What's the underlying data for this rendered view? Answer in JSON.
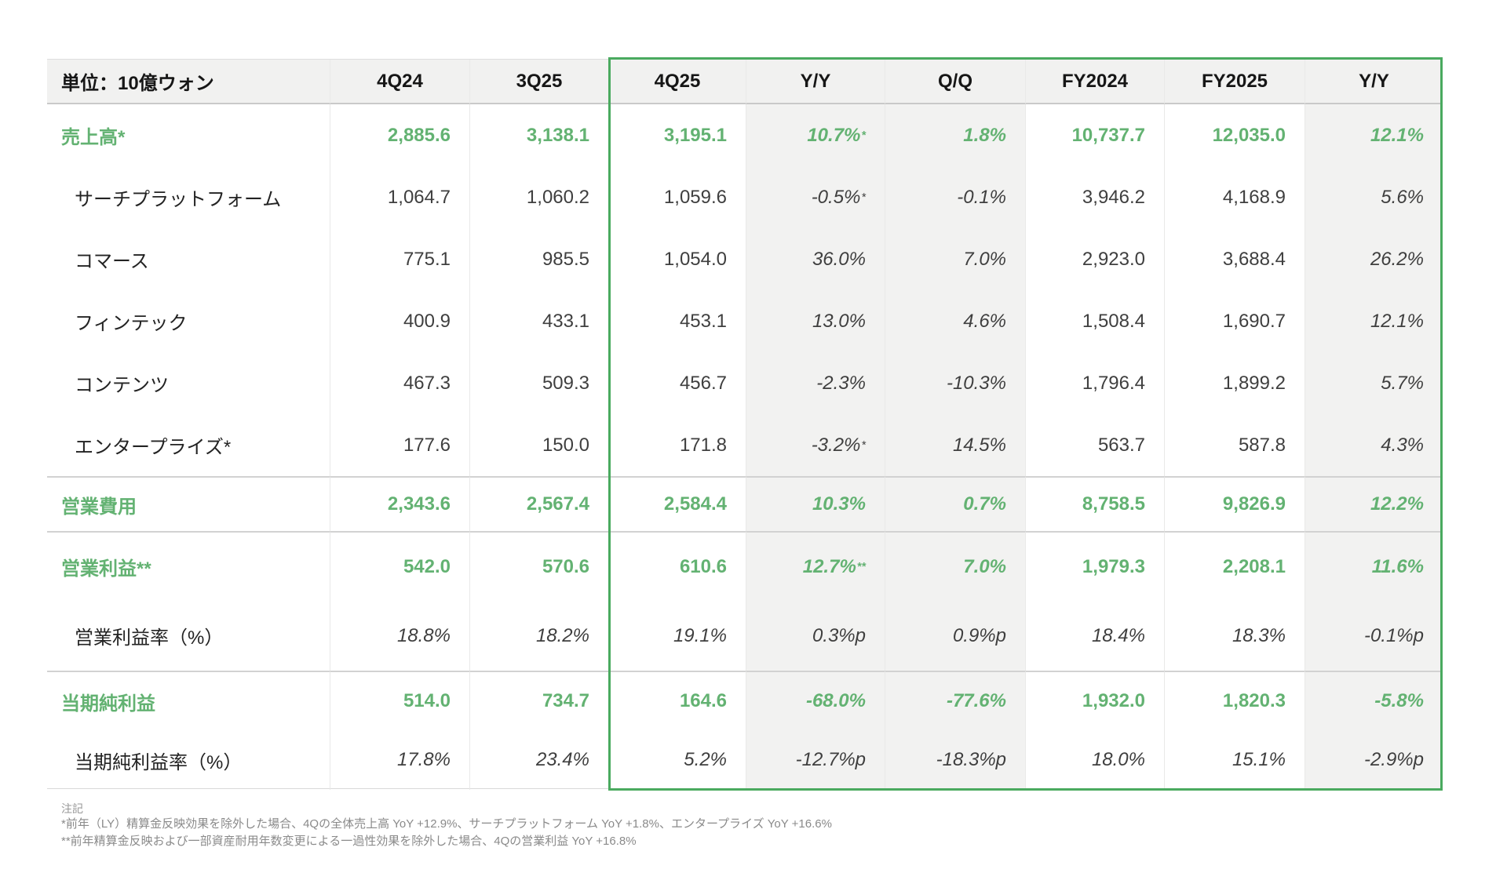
{
  "colors": {
    "green_text": "#63b272",
    "green_border": "#4aaa5f",
    "shade_bg": "#f2f2f1",
    "header_bg": "#f1f1f0"
  },
  "table": {
    "unit_label": "単位：10億ウォン",
    "columns": [
      "4Q24",
      "3Q25",
      "4Q25",
      "Y/Y",
      "Q/Q",
      "FY2024",
      "FY2025",
      "Y/Y"
    ],
    "highlighted_columns": [
      "4Q25",
      "Y/Y",
      "Q/Q",
      "FY2024",
      "FY2025",
      "Y/Y"
    ],
    "sections": [
      {
        "rows": [
          {
            "label": "売上高*",
            "style": "total",
            "values": [
              "2,885.6",
              "3,138.1",
              "3,195.1",
              "10.7%*",
              "1.8%",
              "10,737.7",
              "12,035.0",
              "12.1%"
            ]
          },
          {
            "label": "サーチプラットフォーム",
            "style": "sub",
            "values": [
              "1,064.7",
              "1,060.2",
              "1,059.6",
              "-0.5%*",
              "-0.1%",
              "3,946.2",
              "4,168.9",
              "5.6%"
            ]
          },
          {
            "label": "コマース",
            "style": "sub",
            "values": [
              "775.1",
              "985.5",
              "1,054.0",
              "36.0%",
              "7.0%",
              "2,923.0",
              "3,688.4",
              "26.2%"
            ]
          },
          {
            "label": "フィンテック",
            "style": "sub",
            "values": [
              "400.9",
              "433.1",
              "453.1",
              "13.0%",
              "4.6%",
              "1,508.4",
              "1,690.7",
              "12.1%"
            ]
          },
          {
            "label": "コンテンツ",
            "style": "sub",
            "values": [
              "467.3",
              "509.3",
              "456.7",
              "-2.3%",
              "-10.3%",
              "1,796.4",
              "1,899.2",
              "5.7%"
            ]
          },
          {
            "label": "エンタープライズ*",
            "style": "sub",
            "values": [
              "177.6",
              "150.0",
              "171.8",
              "-3.2%*",
              "14.5%",
              "563.7",
              "587.8",
              "4.3%"
            ]
          }
        ]
      },
      {
        "rows": [
          {
            "label": "営業費用",
            "style": "total",
            "values": [
              "2,343.6",
              "2,567.4",
              "2,584.4",
              "10.3%",
              "0.7%",
              "8,758.5",
              "9,826.9",
              "12.2%"
            ]
          }
        ]
      },
      {
        "rows": [
          {
            "label": "営業利益**",
            "style": "total",
            "values": [
              "542.0",
              "570.6",
              "610.6",
              "12.7%**",
              "7.0%",
              "1,979.3",
              "2,208.1",
              "11.6%"
            ]
          },
          {
            "label": "営業利益率（%）",
            "style": "ratio",
            "values": [
              "18.8%",
              "18.2%",
              "19.1%",
              "0.3%p",
              "0.9%p",
              "18.4%",
              "18.3%",
              "-0.1%p"
            ]
          }
        ]
      },
      {
        "rows": [
          {
            "label": "当期純利益",
            "style": "total",
            "values": [
              "514.0",
              "734.7",
              "164.6",
              "-68.0%",
              "-77.6%",
              "1,932.0",
              "1,820.3",
              "-5.8%"
            ]
          },
          {
            "label": "当期純利益率（%）",
            "style": "ratio",
            "values": [
              "17.8%",
              "23.4%",
              "5.2%",
              "-12.7%p",
              "-18.3%p",
              "18.0%",
              "15.1%",
              "-2.9%p"
            ]
          }
        ]
      }
    ]
  },
  "notes": {
    "title": "注記",
    "line1": "*前年（LY）精算金反映効果を除外した場合、4Qの全体売上高 YoY +12.9%、サーチプラットフォーム YoY +1.8%、エンタープライズ YoY +16.6%",
    "line2": "**前年精算金反映および一部資産耐用年数変更による一過性効果を除外した場合、4Qの営業利益 YoY +16.8%"
  }
}
